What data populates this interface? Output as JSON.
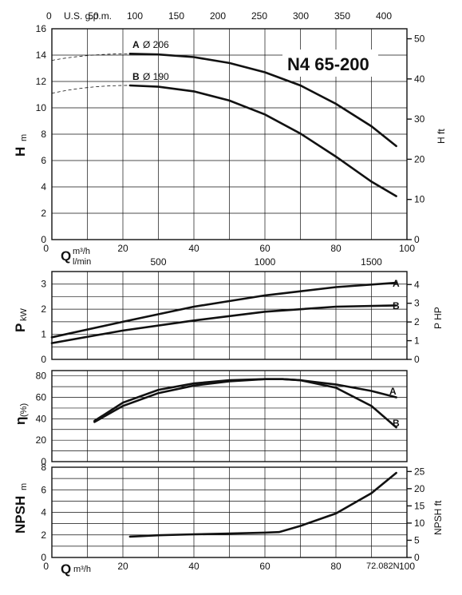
{
  "chart_data": [
    {
      "type": "line",
      "id": "head",
      "title": "N4 65-200",
      "top_axis_label": "U.S. g.p.m.",
      "top_ticks": [
        "0",
        "50",
        "100",
        "150",
        "200",
        "250",
        "300",
        "350",
        "400"
      ],
      "ylabel": "H",
      "yunit": "m",
      "ylim": [
        0,
        16
      ],
      "yticks": [
        "0",
        "2",
        "4",
        "6",
        "8",
        "10",
        "12",
        "14",
        "16"
      ],
      "ylabel_right": "H ft",
      "yticks_right": [
        "0",
        "10",
        "20",
        "30",
        "40",
        "50"
      ],
      "xlim": [
        0,
        100
      ],
      "series": [
        {
          "name": "A",
          "diameter_label": "Ø 206",
          "x": [
            22,
            30,
            40,
            50,
            60,
            70,
            80,
            90,
            97
          ],
          "y": [
            14.1,
            14.05,
            13.85,
            13.4,
            12.7,
            11.7,
            10.3,
            8.6,
            7.1
          ]
        },
        {
          "name": "B",
          "diameter_label": "Ø 190",
          "x": [
            22,
            30,
            40,
            50,
            60,
            70,
            80,
            90,
            97
          ],
          "y": [
            11.7,
            11.6,
            11.25,
            10.55,
            9.5,
            8.05,
            6.3,
            4.4,
            3.3
          ]
        }
      ]
    },
    {
      "type": "line",
      "id": "power",
      "xlabel": "Q",
      "xunit": "m³/h",
      "xticks": [
        "0",
        "20",
        "40",
        "60",
        "80",
        "100"
      ],
      "xlabel_alt": "l/min",
      "xticks_alt": [
        "500",
        "1000",
        "1500"
      ],
      "ylabel": "P",
      "yunit": "kW",
      "ylim": [
        0,
        3.5
      ],
      "yticks": [
        "0",
        "1",
        "2",
        "3"
      ],
      "ylabel_right": "P HP",
      "yticks_right": [
        "0",
        "1",
        "2",
        "3",
        "4"
      ],
      "xlim": [
        0,
        100
      ],
      "series": [
        {
          "name": "A",
          "x": [
            0,
            20,
            40,
            60,
            80,
            97
          ],
          "y": [
            0.88,
            1.5,
            2.1,
            2.55,
            2.88,
            3.05
          ]
        },
        {
          "name": "B",
          "x": [
            0,
            20,
            40,
            60,
            80,
            97
          ],
          "y": [
            0.65,
            1.15,
            1.55,
            1.9,
            2.1,
            2.15
          ]
        }
      ]
    },
    {
      "type": "line",
      "id": "efficiency",
      "ylabel": "η",
      "yunit": "(%)",
      "ylim": [
        0,
        85
      ],
      "yticks": [
        "0",
        "20",
        "40",
        "60",
        "80"
      ],
      "xlim": [
        0,
        100
      ],
      "series": [
        {
          "name": "A",
          "x": [
            12,
            20,
            30,
            40,
            50,
            60,
            65,
            70,
            80,
            90,
            97
          ],
          "y": [
            38,
            55,
            67,
            73,
            76,
            77,
            77,
            76,
            72,
            66,
            60
          ]
        },
        {
          "name": "B",
          "x": [
            12,
            20,
            30,
            40,
            50,
            60,
            65,
            70,
            80,
            90,
            97
          ],
          "y": [
            37,
            52,
            64,
            71,
            75,
            77,
            77,
            76,
            69,
            52,
            32
          ]
        }
      ]
    },
    {
      "type": "line",
      "id": "npsh",
      "ylabel": "NPSH",
      "yunit": "m",
      "ylim": [
        0,
        8
      ],
      "yticks": [
        "0",
        "2",
        "4",
        "6",
        "8"
      ],
      "ylabel_right": "NPSH ft",
      "yticks_right": [
        "0",
        "5",
        "10",
        "15",
        "20",
        "25"
      ],
      "xlabel": "Q",
      "xunit": "m³/h",
      "xticks": [
        "0",
        "20",
        "40",
        "60",
        "80",
        "100"
      ],
      "xlim": [
        0,
        100
      ],
      "series": [
        {
          "name": "",
          "x": [
            22,
            30,
            40,
            50,
            60,
            64,
            70,
            80,
            90,
            97
          ],
          "y": [
            1.85,
            1.97,
            2.05,
            2.12,
            2.2,
            2.25,
            2.8,
            3.9,
            5.7,
            7.5
          ]
        }
      ]
    }
  ],
  "figure_code": "72.082N"
}
